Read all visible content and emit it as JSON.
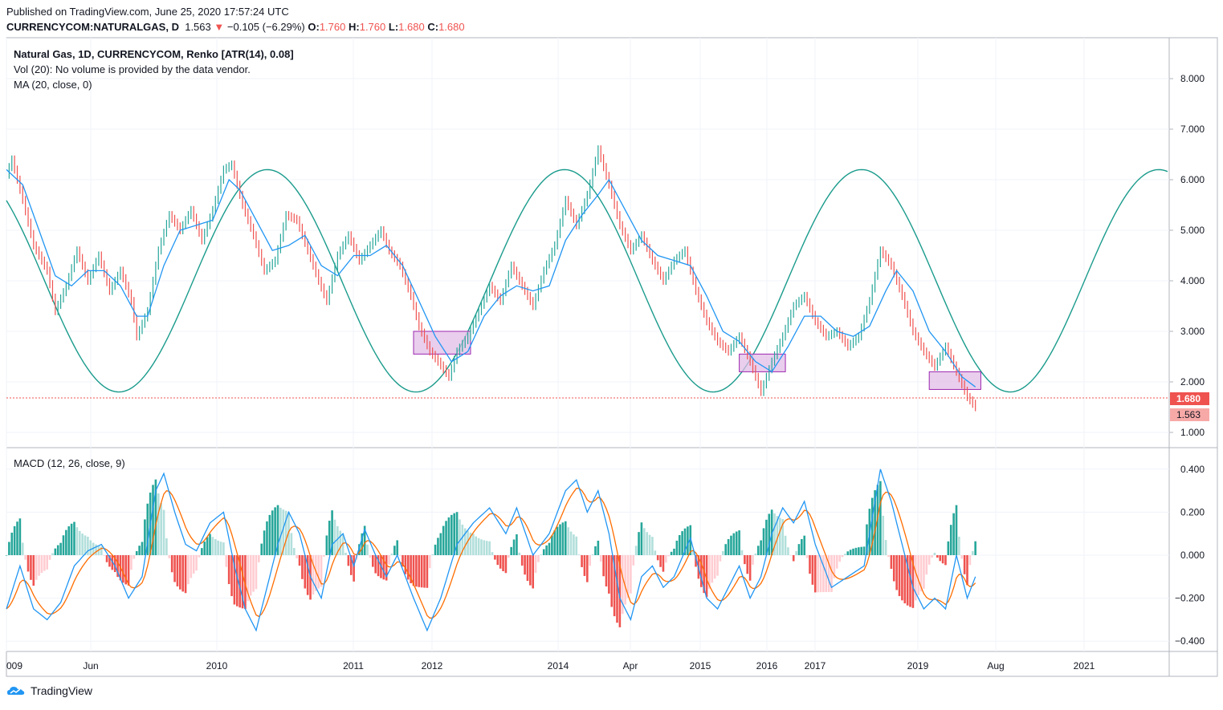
{
  "header": {
    "published": "Published on TradingView.com, June 25, 2020 17:57:24 UTC",
    "symbol": "CURRENCYCOM:NATURALGAS, D",
    "price": "1.563",
    "change": "−0.105 (−6.29%)",
    "o_label": "O:",
    "o_val": "1.760",
    "h_label": "H:",
    "h_val": "1.760",
    "l_label": "L:",
    "l_val": "1.680",
    "c_label": "C:",
    "c_val": "1.680"
  },
  "main_pane": {
    "legend": [
      "Natural Gas, 1D, CURRENCYCOM, Renko [ATR(14), 0.08]",
      "Vol (20): No volume is provided by the data vendor.",
      "MA (20, close, 0)"
    ],
    "price_ticks": [
      "8.000",
      "7.000",
      "6.000",
      "5.000",
      "4.000",
      "3.000",
      "2.000",
      "1.000"
    ],
    "last_price_label": "1.680",
    "current_price_label": "1.563"
  },
  "macd_pane": {
    "legend": "MACD (12, 26, close, 9)",
    "ticks": [
      "0.400",
      "0.200",
      "0.000",
      "−0.200",
      "−0.400"
    ]
  },
  "time_axis": {
    "labels": [
      "009",
      "Jun",
      "2010",
      "2011",
      "2012",
      "2014",
      "Apr",
      "2015",
      "2016",
      "2017",
      "2019",
      "Aug",
      "2021"
    ]
  },
  "footer": {
    "brand": "TradingView"
  },
  "colors": {
    "up": "#26a69a",
    "down": "#ef5350",
    "ma": "#2196f3",
    "sine": "#1a9b8c",
    "macd": "#2196f3",
    "signal": "#ff6d00",
    "box_fill": "#e1bee7",
    "box_stroke": "#9c27b0"
  },
  "chart_data": [
    {
      "type": "line",
      "title": "Natural Gas, 1D, CURRENCYCOM, Renko [ATR(14), 0.08]",
      "ylim": [
        0.6,
        8.7
      ],
      "x_labels": [
        "009",
        "Jun",
        "2010",
        "2011",
        "2012",
        "2014",
        "Apr",
        "2015",
        "2016",
        "2017",
        "2019",
        "Aug",
        "2021"
      ],
      "series": [
        {
          "name": "price",
          "points": [
            [
              0,
              6.1
            ],
            [
              2,
              6.4
            ],
            [
              6,
              5.6
            ],
            [
              10,
              4.7
            ],
            [
              15,
              4.2
            ],
            [
              18,
              3.4
            ],
            [
              22,
              3.9
            ],
            [
              26,
              4.6
            ],
            [
              30,
              4.0
            ],
            [
              34,
              4.5
            ],
            [
              38,
              3.8
            ],
            [
              42,
              4.2
            ],
            [
              46,
              3.6
            ],
            [
              48,
              2.9
            ],
            [
              52,
              3.4
            ],
            [
              56,
              4.6
            ],
            [
              60,
              5.3
            ],
            [
              64,
              5.0
            ],
            [
              68,
              5.4
            ],
            [
              72,
              4.8
            ],
            [
              76,
              5.4
            ],
            [
              80,
              6.2
            ],
            [
              83,
              6.3
            ],
            [
              87,
              5.5
            ],
            [
              91,
              4.9
            ],
            [
              95,
              4.2
            ],
            [
              99,
              4.4
            ],
            [
              103,
              5.3
            ],
            [
              107,
              5.2
            ],
            [
              111,
              4.6
            ],
            [
              115,
              4.0
            ],
            [
              118,
              3.6
            ],
            [
              122,
              4.5
            ],
            [
              126,
              4.9
            ],
            [
              130,
              4.4
            ],
            [
              134,
              4.7
            ],
            [
              138,
              5.0
            ],
            [
              141,
              4.6
            ],
            [
              145,
              4.3
            ],
            [
              149,
              3.7
            ],
            [
              152,
              3.1
            ],
            [
              156,
              2.6
            ],
            [
              159,
              2.4
            ],
            [
              163,
              2.1
            ],
            [
              166,
              2.6
            ],
            [
              170,
              2.9
            ],
            [
              174,
              3.4
            ],
            [
              178,
              3.9
            ],
            [
              182,
              3.6
            ],
            [
              186,
              4.3
            ],
            [
              190,
              3.9
            ],
            [
              194,
              3.5
            ],
            [
              198,
              4.2
            ],
            [
              202,
              4.7
            ],
            [
              206,
              5.6
            ],
            [
              210,
              5.1
            ],
            [
              214,
              5.7
            ],
            [
              218,
              6.6
            ],
            [
              222,
              5.9
            ],
            [
              226,
              5.1
            ],
            [
              230,
              4.6
            ],
            [
              234,
              4.9
            ],
            [
              238,
              4.4
            ],
            [
              242,
              4.0
            ],
            [
              246,
              4.4
            ],
            [
              250,
              4.6
            ],
            [
              254,
              3.8
            ],
            [
              258,
              3.2
            ],
            [
              262,
              2.8
            ],
            [
              266,
              2.6
            ],
            [
              270,
              2.9
            ],
            [
              274,
              2.4
            ],
            [
              278,
              1.8
            ],
            [
              282,
              2.4
            ],
            [
              286,
              2.9
            ],
            [
              290,
              3.5
            ],
            [
              294,
              3.7
            ],
            [
              298,
              3.2
            ],
            [
              302,
              2.9
            ],
            [
              306,
              3.0
            ],
            [
              310,
              2.7
            ],
            [
              314,
              2.9
            ],
            [
              318,
              3.6
            ],
            [
              322,
              4.6
            ],
            [
              326,
              4.3
            ],
            [
              330,
              3.7
            ],
            [
              334,
              3.0
            ],
            [
              338,
              2.6
            ],
            [
              342,
              2.3
            ],
            [
              346,
              2.7
            ],
            [
              350,
              2.2
            ],
            [
              354,
              1.7
            ],
            [
              357,
              1.5
            ]
          ]
        },
        {
          "name": "MA",
          "points": [
            [
              0,
              6.2
            ],
            [
              6,
              5.9
            ],
            [
              12,
              5.0
            ],
            [
              18,
              4.1
            ],
            [
              24,
              3.9
            ],
            [
              30,
              4.2
            ],
            [
              36,
              4.2
            ],
            [
              42,
              3.9
            ],
            [
              48,
              3.3
            ],
            [
              52,
              3.3
            ],
            [
              58,
              4.3
            ],
            [
              64,
              5.0
            ],
            [
              70,
              5.1
            ],
            [
              76,
              5.2
            ],
            [
              82,
              6.0
            ],
            [
              86,
              5.8
            ],
            [
              92,
              5.2
            ],
            [
              98,
              4.6
            ],
            [
              104,
              4.7
            ],
            [
              110,
              4.9
            ],
            [
              116,
              4.3
            ],
            [
              122,
              4.1
            ],
            [
              128,
              4.5
            ],
            [
              134,
              4.5
            ],
            [
              140,
              4.7
            ],
            [
              146,
              4.3
            ],
            [
              152,
              3.6
            ],
            [
              158,
              2.9
            ],
            [
              164,
              2.4
            ],
            [
              170,
              2.6
            ],
            [
              176,
              3.3
            ],
            [
              182,
              3.7
            ],
            [
              188,
              3.9
            ],
            [
              194,
              3.8
            ],
            [
              200,
              3.9
            ],
            [
              206,
              4.8
            ],
            [
              212,
              5.3
            ],
            [
              218,
              5.7
            ],
            [
              222,
              6.0
            ],
            [
              228,
              5.4
            ],
            [
              234,
              4.8
            ],
            [
              240,
              4.5
            ],
            [
              246,
              4.4
            ],
            [
              252,
              4.3
            ],
            [
              258,
              3.7
            ],
            [
              264,
              3.0
            ],
            [
              270,
              2.8
            ],
            [
              276,
              2.4
            ],
            [
              282,
              2.2
            ],
            [
              288,
              2.7
            ],
            [
              294,
              3.3
            ],
            [
              300,
              3.3
            ],
            [
              306,
              3.0
            ],
            [
              312,
              2.9
            ],
            [
              318,
              3.1
            ],
            [
              324,
              3.8
            ],
            [
              328,
              4.2
            ],
            [
              334,
              3.8
            ],
            [
              340,
              3.0
            ],
            [
              346,
              2.6
            ],
            [
              352,
              2.1
            ],
            [
              357,
              1.9
            ]
          ]
        },
        {
          "name": "sine",
          "amplitude": 2.2,
          "center": 4.0,
          "period_px": 370
        }
      ],
      "boxes": [
        {
          "x": [
            150,
            171
          ],
          "y": [
            2.55,
            3.0
          ]
        },
        {
          "x": [
            270,
            287
          ],
          "y": [
            2.2,
            2.55
          ]
        },
        {
          "x": [
            340,
            359
          ],
          "y": [
            1.85,
            2.2
          ]
        }
      ]
    },
    {
      "type": "line",
      "title": "MACD (12, 26, close, 9)",
      "ylim": [
        -0.45,
        0.45
      ],
      "series": [
        {
          "name": "MACD",
          "points": [
            [
              0,
              -0.25
            ],
            [
              5,
              -0.05
            ],
            [
              10,
              -0.25
            ],
            [
              15,
              -0.3
            ],
            [
              20,
              -0.22
            ],
            [
              25,
              -0.05
            ],
            [
              30,
              0.02
            ],
            [
              35,
              0.05
            ],
            [
              40,
              -0.05
            ],
            [
              45,
              -0.2
            ],
            [
              50,
              -0.1
            ],
            [
              55,
              0.3
            ],
            [
              58,
              0.38
            ],
            [
              62,
              0.2
            ],
            [
              66,
              0.05
            ],
            [
              70,
              0.02
            ],
            [
              75,
              0.15
            ],
            [
              80,
              0.2
            ],
            [
              84,
              -0.05
            ],
            [
              88,
              -0.25
            ],
            [
              92,
              -0.35
            ],
            [
              96,
              -0.15
            ],
            [
              100,
              0.05
            ],
            [
              104,
              0.2
            ],
            [
              108,
              0.1
            ],
            [
              112,
              -0.1
            ],
            [
              116,
              -0.2
            ],
            [
              120,
              0.05
            ],
            [
              124,
              0.1
            ],
            [
              128,
              -0.05
            ],
            [
              132,
              0.12
            ],
            [
              136,
              0.0
            ],
            [
              140,
              -0.1
            ],
            [
              144,
              0.0
            ],
            [
              150,
              -0.2
            ],
            [
              155,
              -0.35
            ],
            [
              160,
              -0.2
            ],
            [
              166,
              0.05
            ],
            [
              172,
              0.15
            ],
            [
              178,
              0.22
            ],
            [
              184,
              0.1
            ],
            [
              188,
              0.22
            ],
            [
              194,
              0.0
            ],
            [
              200,
              0.1
            ],
            [
              206,
              0.3
            ],
            [
              210,
              0.35
            ],
            [
              214,
              0.2
            ],
            [
              218,
              0.3
            ],
            [
              222,
              0.1
            ],
            [
              226,
              -0.2
            ],
            [
              230,
              -0.3
            ],
            [
              234,
              -0.1
            ],
            [
              238,
              -0.05
            ],
            [
              242,
              -0.15
            ],
            [
              246,
              -0.1
            ],
            [
              252,
              0.08
            ],
            [
              258,
              -0.2
            ],
            [
              262,
              -0.25
            ],
            [
              266,
              -0.15
            ],
            [
              270,
              -0.05
            ],
            [
              274,
              -0.2
            ],
            [
              278,
              -0.1
            ],
            [
              282,
              0.1
            ],
            [
              286,
              0.22
            ],
            [
              290,
              0.15
            ],
            [
              294,
              0.25
            ],
            [
              298,
              0.05
            ],
            [
              304,
              -0.15
            ],
            [
              310,
              -0.1
            ],
            [
              316,
              -0.05
            ],
            [
              322,
              0.4
            ],
            [
              326,
              0.25
            ],
            [
              330,
              0.05
            ],
            [
              334,
              -0.15
            ],
            [
              338,
              -0.25
            ],
            [
              342,
              -0.2
            ],
            [
              346,
              -0.25
            ],
            [
              350,
              0.0
            ],
            [
              354,
              -0.2
            ],
            [
              357,
              -0.1
            ]
          ]
        }
      ]
    }
  ]
}
